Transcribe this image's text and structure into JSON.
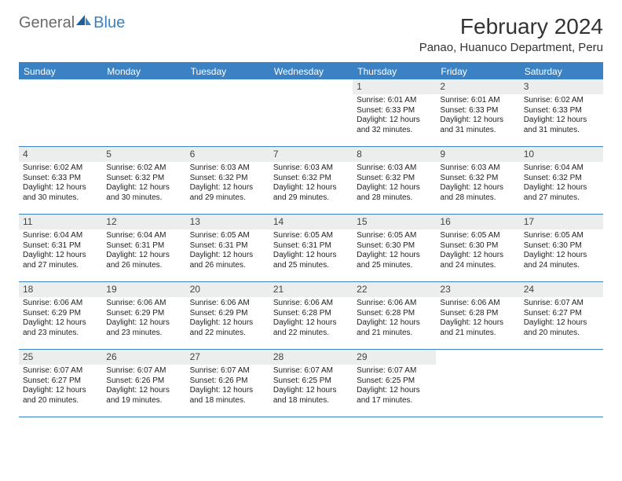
{
  "logo": {
    "general": "General",
    "blue": "Blue"
  },
  "title": "February 2024",
  "location": "Panao, Huanuco Department, Peru",
  "colors": {
    "accent": "#3b82c4",
    "header_text": "#ffffff",
    "daynum_bg": "#eceded",
    "body_text": "#222222",
    "logo_gray": "#6b6b6b"
  },
  "weekdays": [
    "Sunday",
    "Monday",
    "Tuesday",
    "Wednesday",
    "Thursday",
    "Friday",
    "Saturday"
  ],
  "leading_blanks": 4,
  "days": [
    {
      "n": 1,
      "sunrise": "6:01 AM",
      "sunset": "6:33 PM",
      "dl": "12 hours and 32 minutes."
    },
    {
      "n": 2,
      "sunrise": "6:01 AM",
      "sunset": "6:33 PM",
      "dl": "12 hours and 31 minutes."
    },
    {
      "n": 3,
      "sunrise": "6:02 AM",
      "sunset": "6:33 PM",
      "dl": "12 hours and 31 minutes."
    },
    {
      "n": 4,
      "sunrise": "6:02 AM",
      "sunset": "6:33 PM",
      "dl": "12 hours and 30 minutes."
    },
    {
      "n": 5,
      "sunrise": "6:02 AM",
      "sunset": "6:32 PM",
      "dl": "12 hours and 30 minutes."
    },
    {
      "n": 6,
      "sunrise": "6:03 AM",
      "sunset": "6:32 PM",
      "dl": "12 hours and 29 minutes."
    },
    {
      "n": 7,
      "sunrise": "6:03 AM",
      "sunset": "6:32 PM",
      "dl": "12 hours and 29 minutes."
    },
    {
      "n": 8,
      "sunrise": "6:03 AM",
      "sunset": "6:32 PM",
      "dl": "12 hours and 28 minutes."
    },
    {
      "n": 9,
      "sunrise": "6:03 AM",
      "sunset": "6:32 PM",
      "dl": "12 hours and 28 minutes."
    },
    {
      "n": 10,
      "sunrise": "6:04 AM",
      "sunset": "6:32 PM",
      "dl": "12 hours and 27 minutes."
    },
    {
      "n": 11,
      "sunrise": "6:04 AM",
      "sunset": "6:31 PM",
      "dl": "12 hours and 27 minutes."
    },
    {
      "n": 12,
      "sunrise": "6:04 AM",
      "sunset": "6:31 PM",
      "dl": "12 hours and 26 minutes."
    },
    {
      "n": 13,
      "sunrise": "6:05 AM",
      "sunset": "6:31 PM",
      "dl": "12 hours and 26 minutes."
    },
    {
      "n": 14,
      "sunrise": "6:05 AM",
      "sunset": "6:31 PM",
      "dl": "12 hours and 25 minutes."
    },
    {
      "n": 15,
      "sunrise": "6:05 AM",
      "sunset": "6:30 PM",
      "dl": "12 hours and 25 minutes."
    },
    {
      "n": 16,
      "sunrise": "6:05 AM",
      "sunset": "6:30 PM",
      "dl": "12 hours and 24 minutes."
    },
    {
      "n": 17,
      "sunrise": "6:05 AM",
      "sunset": "6:30 PM",
      "dl": "12 hours and 24 minutes."
    },
    {
      "n": 18,
      "sunrise": "6:06 AM",
      "sunset": "6:29 PM",
      "dl": "12 hours and 23 minutes."
    },
    {
      "n": 19,
      "sunrise": "6:06 AM",
      "sunset": "6:29 PM",
      "dl": "12 hours and 23 minutes."
    },
    {
      "n": 20,
      "sunrise": "6:06 AM",
      "sunset": "6:29 PM",
      "dl": "12 hours and 22 minutes."
    },
    {
      "n": 21,
      "sunrise": "6:06 AM",
      "sunset": "6:28 PM",
      "dl": "12 hours and 22 minutes."
    },
    {
      "n": 22,
      "sunrise": "6:06 AM",
      "sunset": "6:28 PM",
      "dl": "12 hours and 21 minutes."
    },
    {
      "n": 23,
      "sunrise": "6:06 AM",
      "sunset": "6:28 PM",
      "dl": "12 hours and 21 minutes."
    },
    {
      "n": 24,
      "sunrise": "6:07 AM",
      "sunset": "6:27 PM",
      "dl": "12 hours and 20 minutes."
    },
    {
      "n": 25,
      "sunrise": "6:07 AM",
      "sunset": "6:27 PM",
      "dl": "12 hours and 20 minutes."
    },
    {
      "n": 26,
      "sunrise": "6:07 AM",
      "sunset": "6:26 PM",
      "dl": "12 hours and 19 minutes."
    },
    {
      "n": 27,
      "sunrise": "6:07 AM",
      "sunset": "6:26 PM",
      "dl": "12 hours and 18 minutes."
    },
    {
      "n": 28,
      "sunrise": "6:07 AM",
      "sunset": "6:25 PM",
      "dl": "12 hours and 18 minutes."
    },
    {
      "n": 29,
      "sunrise": "6:07 AM",
      "sunset": "6:25 PM",
      "dl": "12 hours and 17 minutes."
    }
  ],
  "labels": {
    "sunrise": "Sunrise:",
    "sunset": "Sunset:",
    "daylight": "Daylight:"
  }
}
